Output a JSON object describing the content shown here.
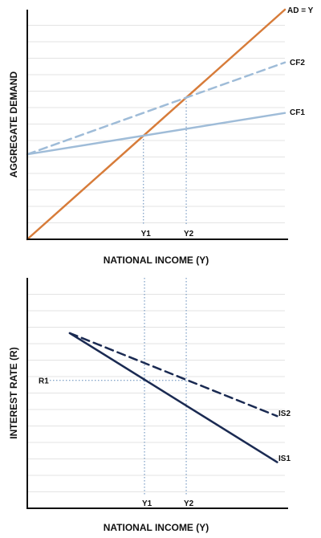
{
  "chart_data": [
    {
      "type": "line",
      "xlabel": "NATIONAL INCOME (Y)",
      "ylabel": "AGGREGATE DEMAND",
      "xlim": [
        0,
        100
      ],
      "ylim": [
        0,
        100
      ],
      "grid": "horizontal",
      "x_ticks": [
        "Y1",
        "Y2"
      ],
      "series": [
        {
          "name": "AD = Y",
          "style": "solid",
          "color": "#d77c3a",
          "x": [
            0,
            100
          ],
          "y": [
            0,
            100
          ]
        },
        {
          "name": "CF2",
          "style": "dashed",
          "color": "#9fbcd8",
          "x": [
            0,
            100
          ],
          "y": [
            37,
            77
          ]
        },
        {
          "name": "CF1",
          "style": "solid",
          "color": "#9fbcd8",
          "x": [
            0,
            100
          ],
          "y": [
            37,
            55
          ]
        }
      ],
      "annotations": [
        {
          "label": "Y1",
          "x": 45.1,
          "y": 45.1,
          "color": "#5f88b8"
        },
        {
          "label": "Y2",
          "x": 61.7,
          "y": 61.7,
          "color": "#5f88b8"
        }
      ]
    },
    {
      "type": "line",
      "xlabel": "NATIONAL INCOME (Y)",
      "ylabel": "INTEREST RATE (R)",
      "xlim": [
        0,
        100
      ],
      "ylim": [
        0,
        100
      ],
      "grid": "horizontal",
      "x_ticks": [
        "Y1",
        "Y2"
      ],
      "y_ticks": [
        "R1"
      ],
      "series": [
        {
          "name": "IS2",
          "style": "dashed",
          "color": "#1a2a52",
          "x": [
            16.5,
            97
          ],
          "y": [
            76,
            40
          ]
        },
        {
          "name": "IS1",
          "style": "solid",
          "color": "#1a2a52",
          "x": [
            16.5,
            97
          ],
          "y": [
            76,
            20
          ]
        }
      ],
      "annotations": [
        {
          "label": "Y1",
          "x": 45.5,
          "color": "#5f88b8"
        },
        {
          "label": "Y2",
          "x": 61.7,
          "color": "#5f88b8"
        },
        {
          "label": "R1",
          "y": 55.5,
          "to_x": 61.7,
          "color": "#5f88b8"
        }
      ]
    }
  ]
}
